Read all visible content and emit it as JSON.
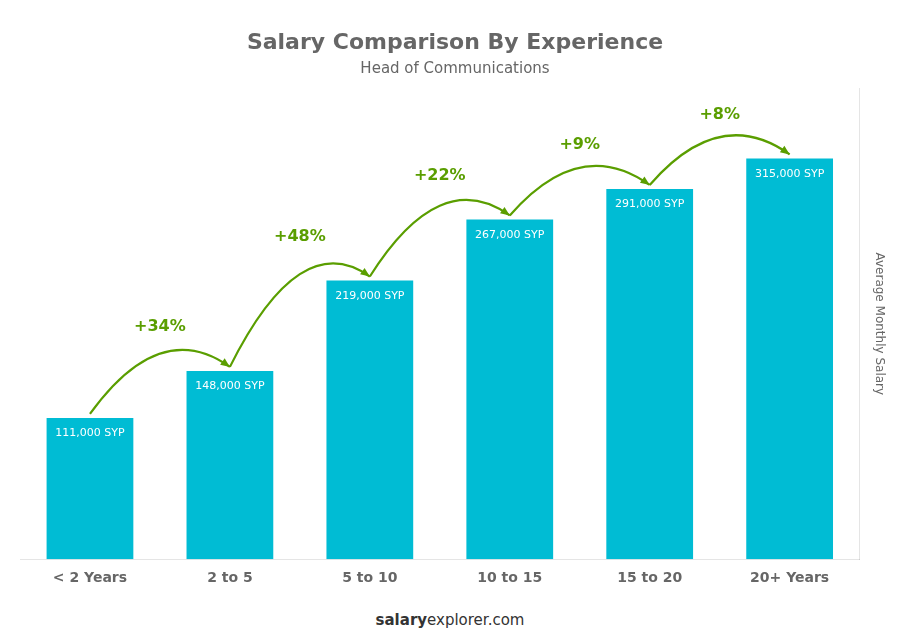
{
  "chart_data": {
    "type": "bar",
    "title": "Salary Comparison By Experience",
    "subtitle": "Head of Communications",
    "ylabel": "Average Monthly Salary",
    "categories": [
      "< 2 Years",
      "2 to 5",
      "5 to 10",
      "10 to 15",
      "15 to 20",
      "20+ Years"
    ],
    "values": [
      111000,
      148000,
      219000,
      267000,
      291000,
      315000
    ],
    "value_labels": [
      "111,000 SYP",
      "148,000 SYP",
      "219,000 SYP",
      "267,000 SYP",
      "291,000 SYP",
      "315,000 SYP"
    ],
    "data_labels": true,
    "pct_changes": [
      "+34%",
      "+48%",
      "+22%",
      "+9%",
      "+8%"
    ],
    "pct_color": "#5a9e00",
    "color": "#00bcd4",
    "ylim": [
      0,
      370000
    ],
    "grid": false,
    "tick_labels": "x",
    "footer": [
      "salary",
      "explorer.com"
    ]
  }
}
